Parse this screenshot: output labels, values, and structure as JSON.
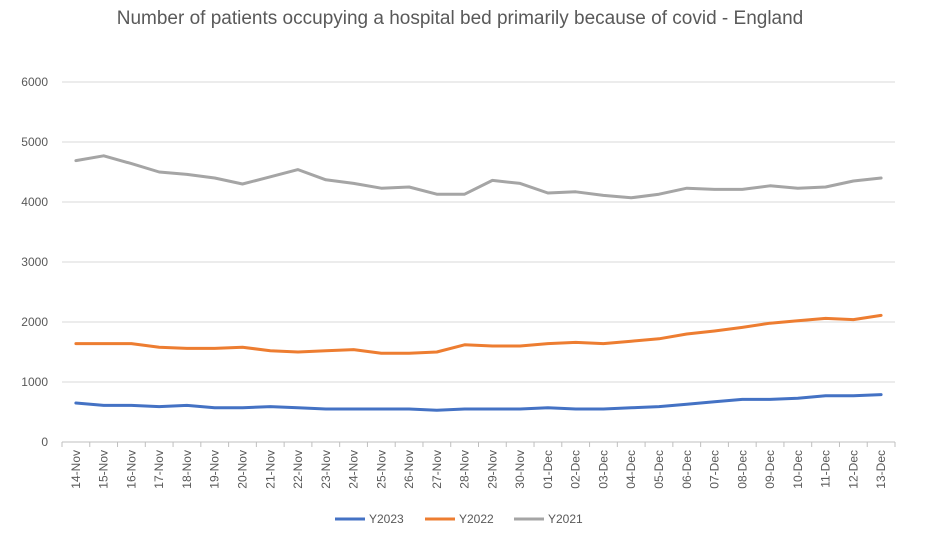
{
  "chart_data": {
    "type": "line",
    "title": "Number of patients occupying a hospital bed primarily because of covid - England",
    "xlabel": "",
    "ylabel": "",
    "ylim": [
      0,
      6000
    ],
    "yticks": [
      0,
      1000,
      2000,
      3000,
      4000,
      5000,
      6000
    ],
    "grid": true,
    "legend_position": "bottom",
    "categories": [
      "14-Nov",
      "15-Nov",
      "16-Nov",
      "17-Nov",
      "18-Nov",
      "19-Nov",
      "20-Nov",
      "21-Nov",
      "22-Nov",
      "23-Nov",
      "24-Nov",
      "25-Nov",
      "26-Nov",
      "27-Nov",
      "28-Nov",
      "29-Nov",
      "30-Nov",
      "01-Dec",
      "02-Dec",
      "03-Dec",
      "04-Dec",
      "05-Dec",
      "06-Dec",
      "07-Dec",
      "08-Dec",
      "09-Dec",
      "10-Dec",
      "11-Dec",
      "12-Dec",
      "13-Dec"
    ],
    "series": [
      {
        "name": "Y2023",
        "color": "#4472c4",
        "values": [
          650,
          610,
          610,
          590,
          610,
          570,
          570,
          590,
          570,
          550,
          550,
          550,
          550,
          530,
          550,
          550,
          550,
          570,
          550,
          550,
          570,
          590,
          630,
          670,
          710,
          710,
          730,
          770,
          770,
          790
        ]
      },
      {
        "name": "Y2022",
        "color": "#ed7d31",
        "values": [
          1640,
          1640,
          1640,
          1580,
          1560,
          1560,
          1580,
          1520,
          1500,
          1520,
          1540,
          1480,
          1480,
          1500,
          1620,
          1600,
          1600,
          1640,
          1660,
          1640,
          1680,
          1720,
          1800,
          1850,
          1910,
          1980,
          2020,
          2060,
          2040,
          2110
        ]
      },
      {
        "name": "Y2021",
        "color": "#a5a5a5",
        "values": [
          4690,
          4770,
          4640,
          4500,
          4460,
          4400,
          4300,
          4420,
          4540,
          4370,
          4310,
          4230,
          4250,
          4130,
          4130,
          4360,
          4310,
          4150,
          4170,
          4110,
          4070,
          4130,
          4230,
          4210,
          4210,
          4270,
          4230,
          4250,
          4350,
          4400
        ]
      }
    ]
  }
}
